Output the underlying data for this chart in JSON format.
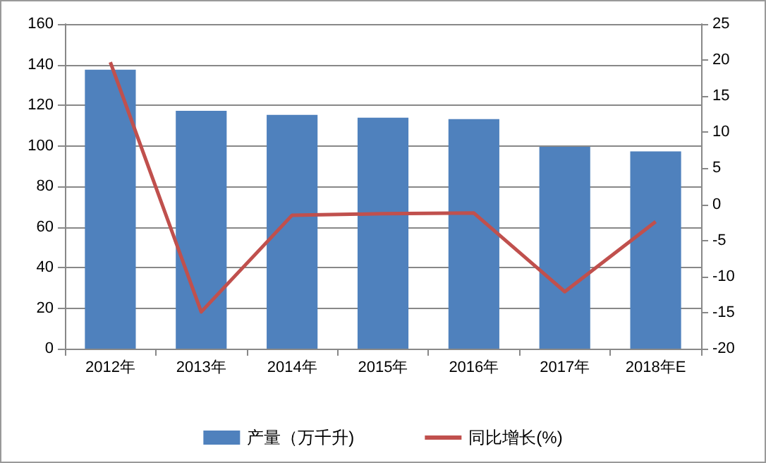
{
  "chart_data": {
    "type": "bar",
    "categories": [
      "2012年",
      "2013年",
      "2014年",
      "2015年",
      "2016年",
      "2017年",
      "2018年E"
    ],
    "series": [
      {
        "name": "产量（万千升)",
        "color": "#4f81bd",
        "values": [
          137.5,
          117.2,
          115.2,
          113.8,
          113.1,
          99.5,
          97.2
        ]
      },
      {
        "name": "同比增长(%)",
        "type": "line",
        "axis": "y2",
        "color": "#c0504d",
        "values": [
          19.7,
          -14.9,
          -1.5,
          -1.3,
          -1.2,
          -12.1,
          -2.4
        ]
      }
    ],
    "ylim": [
      0,
      160
    ],
    "yticks": [
      0,
      20,
      40,
      60,
      80,
      100,
      120,
      140,
      160
    ],
    "y2lim": [
      -20,
      25
    ],
    "y2ticks": [
      -20,
      -15,
      -10,
      -5,
      0,
      5,
      10,
      15,
      20,
      25
    ],
    "grid": "y",
    "legend": "bottom",
    "marker": "none"
  }
}
